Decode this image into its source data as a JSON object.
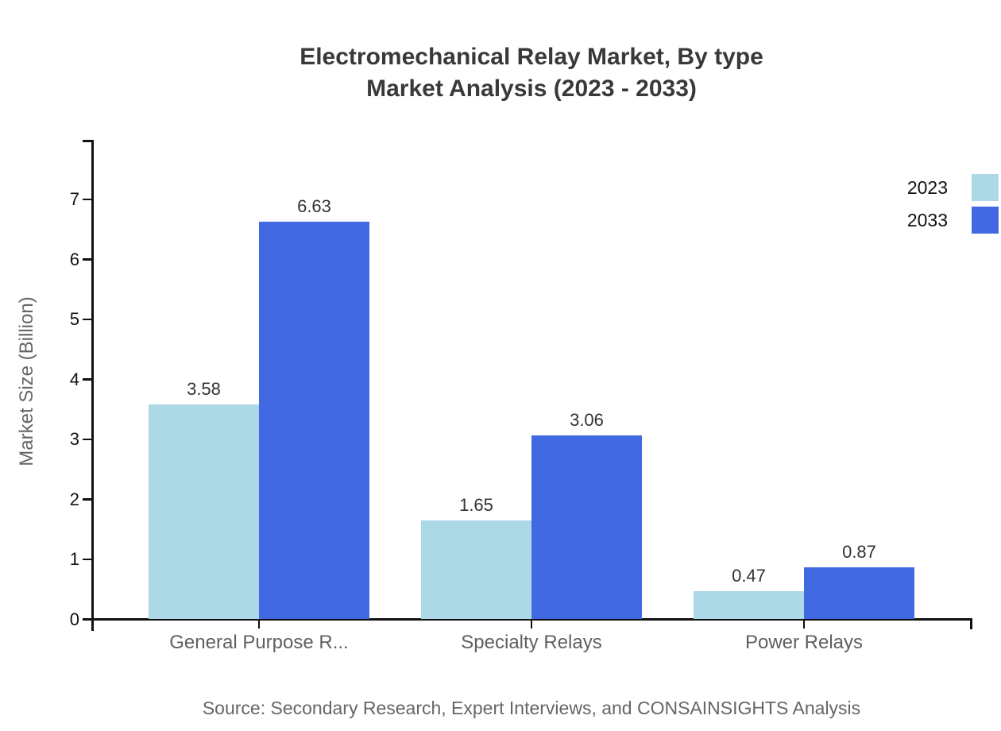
{
  "title": {
    "line1": "Electromechanical Relay Market, By type",
    "line2": "Market Analysis (2023 - 2033)"
  },
  "source": "Source: Secondary Research, Expert Interviews, and CONSAINSIGHTS Analysis",
  "chart_data": {
    "type": "bar",
    "title": "Electromechanical Relay Market, By type — Market Analysis (2023 - 2033)",
    "categories": [
      "General Purpose R...",
      "Specialty Relays",
      "Power Relays"
    ],
    "series": [
      {
        "name": "2023",
        "color": "#ADD8E6",
        "values": [
          3.58,
          1.65,
          0.47
        ]
      },
      {
        "name": "2033",
        "color": "#4169E1",
        "values": [
          6.63,
          3.06,
          0.87
        ]
      }
    ],
    "xlabel": "",
    "ylabel": "Market Size (Billion)",
    "ylim": [
      0,
      8
    ],
    "yticks": [
      0,
      1,
      2,
      3,
      4,
      5,
      6,
      7
    ],
    "grid": false,
    "legend_position": "top-right",
    "value_labels": true,
    "value_label_format": "0.00"
  },
  "colors": {
    "series_2023": "#ADD8E6",
    "series_2033": "#4169E1",
    "axis": "#111111",
    "title_text": "#37393b",
    "muted_text": "#666666",
    "category_text": "#606060",
    "value_text": "#333333",
    "background": "#ffffff"
  }
}
